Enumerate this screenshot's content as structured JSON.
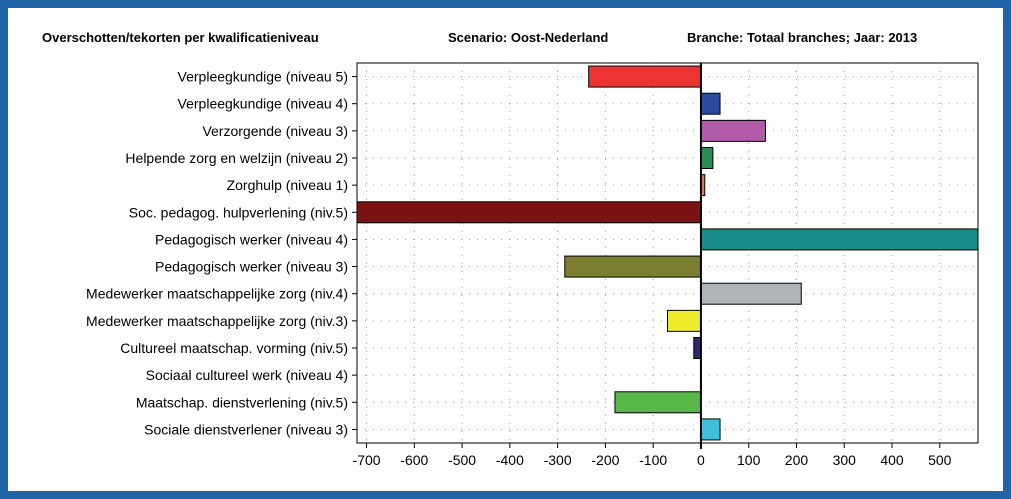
{
  "header": {
    "title": "Overschotten/tekorten per kwalificatieniveau",
    "scenario": "Scenario: Oost-Nederland",
    "branche": "Branche: Totaal branches; Jaar: 2013"
  },
  "colors": {
    "frame": "#1f64a6",
    "grid": "#9a9a9a",
    "axis": "#000000"
  },
  "chart_data": {
    "type": "bar",
    "orientation": "horizontal",
    "title": "Overschotten/tekorten per kwalificatieniveau",
    "subtitle": "Scenario: Oost-Nederland | Branche: Totaal branches; Jaar: 2013",
    "xlabel": "",
    "ylabel": "",
    "xlim": [
      -720,
      580
    ],
    "xticks": [
      -700,
      -600,
      -500,
      -400,
      -300,
      -200,
      -100,
      0,
      100,
      200,
      300,
      400,
      500
    ],
    "grid": true,
    "legend": "none",
    "categories": [
      "Verpleegkundige (niveau 5)",
      "Verpleegkundige (niveau 4)",
      "Verzorgende (niveau 3)",
      "Helpende zorg en welzijn (niveau 2)",
      "Zorghulp (niveau 1)",
      "Soc. pedagog. hulpverlening (niv.5)",
      "Pedagogisch werker (niveau 4)",
      "Pedagogisch werker (niveau 3)",
      "Medewerker maatschappelijke zorg (niv.4)",
      "Medewerker maatschappelijke zorg (niv.3)",
      "Cultureel maatschap. vorming (niv.5)",
      "Sociaal cultureel werk (niveau 4)",
      "Maatschap. dienstverlening (niv.5)",
      "Sociale dienstverlener (niveau 3)"
    ],
    "values": [
      -235,
      40,
      135,
      25,
      8,
      -720,
      580,
      -285,
      210,
      -70,
      -15,
      0,
      -180,
      40
    ],
    "colors": [
      "#ee3333",
      "#2e4a9e",
      "#b05aa8",
      "#2a8a50",
      "#e07a5a",
      "#7a1414",
      "#1a8a8a",
      "#7a7e2e",
      "#b0b4b8",
      "#ecec2a",
      "#2c2a6e",
      "#888888",
      "#56b846",
      "#40c0d8"
    ]
  }
}
